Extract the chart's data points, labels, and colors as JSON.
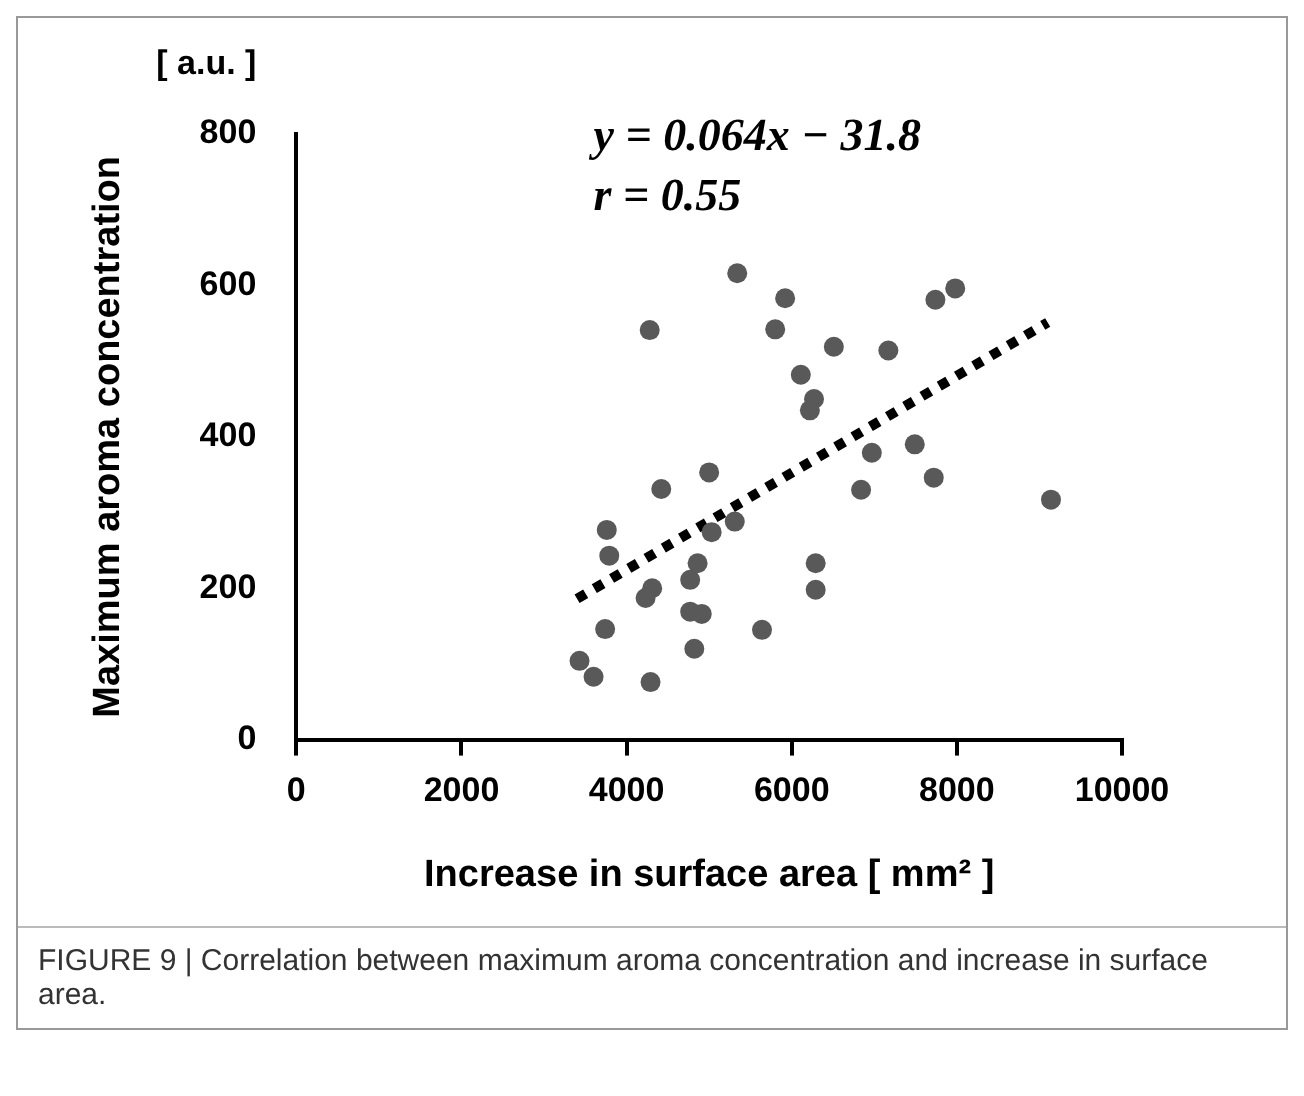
{
  "chart_data": {
    "type": "scatter",
    "xlabel": "Increase in surface area [ mm² ]",
    "ylabel": "Maximum aroma concentration",
    "annotations": [
      "[ a.u. ]",
      "y = 0.064x − 31.8",
      "r = 0.55",
      "FIGURE 9 | Correlation between maximum aroma concentration and increase in surface area."
    ],
    "series": [
      {
        "type": "scatter",
        "color": "#595959",
        "marker": "circle",
        "x": [
          5340,
          5920,
          4280,
          5800,
          7740,
          7980,
          6510,
          7170,
          6110,
          6270,
          6220,
          7490,
          6970,
          7720,
          6840,
          9140,
          5000,
          4420,
          3760,
          3790,
          5310,
          5030,
          4860,
          6290,
          6290,
          4770,
          4310,
          4230,
          3740,
          3430,
          3600,
          4290,
          4820,
          4770,
          4910,
          5640
        ],
        "values": [
          616,
          583,
          541,
          542,
          581,
          596,
          519,
          514,
          482,
          450,
          435,
          390,
          379,
          346,
          330,
          317,
          353,
          331,
          277,
          243,
          288,
          274,
          233,
          233,
          198,
          211,
          200,
          187,
          146,
          104,
          83,
          76,
          120,
          169,
          166,
          145
        ]
      },
      {
        "type": "line",
        "color": "#000000",
        "marker": "none",
        "line_style": "dotted",
        "x": [
          3400,
          9100
        ],
        "values": [
          186,
          551
        ]
      }
    ],
    "xlim": [
      0,
      10000
    ],
    "xticks": [
      0,
      2000,
      4000,
      6000,
      8000,
      10000
    ],
    "ylim": [
      0,
      800
    ],
    "yticks": [
      0,
      200,
      400,
      600,
      800
    ],
    "grid": false,
    "legend": false
  }
}
